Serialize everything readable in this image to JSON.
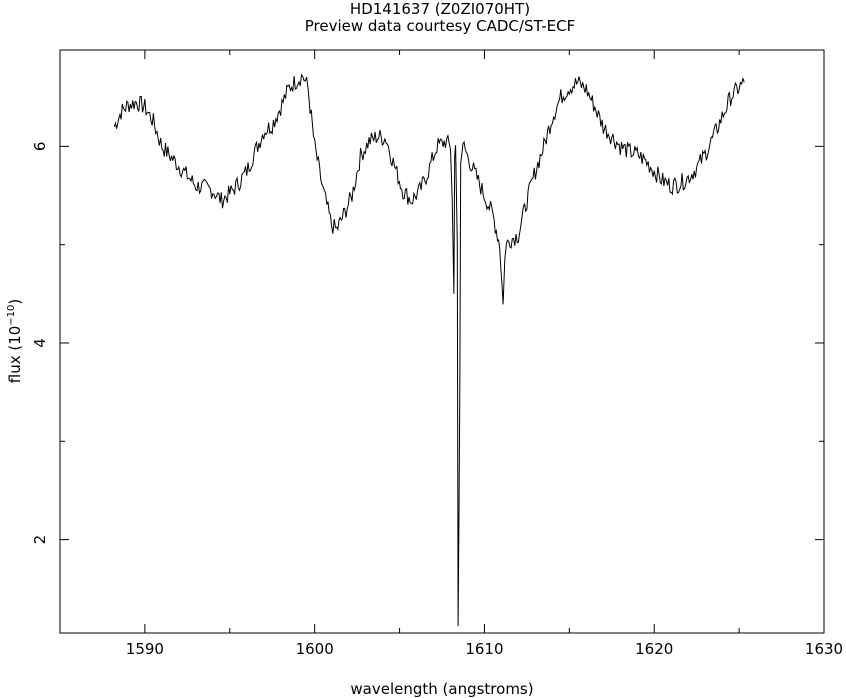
{
  "chart_data": {
    "type": "line",
    "title": "HD141637 (Z0ZI070HT)",
    "subtitle": "Preview data courtesy CADC/ST-ECF",
    "xlabel": "wavelength (angstroms)",
    "ylabel_base": "flux (10",
    "ylabel_exp": "−10",
    "ylabel_close": ")",
    "xlim": [
      1585,
      1630
    ],
    "ylim": [
      1.05,
      6.98
    ],
    "x_ticks": [
      "1590",
      "1600",
      "1610",
      "1620",
      "1630"
    ],
    "y_ticks": [
      "2",
      "4",
      "6"
    ],
    "grid": false,
    "line_color": "#000000",
    "series": [
      {
        "x": [
          1588.2,
          1588.6,
          1589.0,
          1589.5,
          1590.0,
          1590.5,
          1591.0,
          1591.5,
          1592.0,
          1592.5,
          1593.0,
          1593.5,
          1594.0,
          1594.5,
          1595.0,
          1595.5,
          1596.0,
          1596.5,
          1597.0,
          1597.5,
          1598.0,
          1598.5,
          1599.0,
          1599.3,
          1599.6,
          1600.0,
          1600.5,
          1601.0,
          1601.3,
          1601.7,
          1602.2,
          1602.7,
          1603.2,
          1603.7,
          1604.2,
          1604.7,
          1605.2,
          1605.7,
          1606.2,
          1606.7,
          1607.2,
          1607.7,
          1608.0,
          1608.1,
          1608.2,
          1608.25,
          1608.3,
          1608.4,
          1608.45,
          1608.5,
          1608.55,
          1608.6,
          1608.8,
          1609.0,
          1609.5,
          1610.0,
          1610.5,
          1610.9,
          1611.1,
          1611.2,
          1611.3,
          1611.5,
          1612.0,
          1612.5,
          1613.0,
          1613.5,
          1614.0,
          1614.5,
          1615.0,
          1615.5,
          1616.0,
          1616.5,
          1617.0,
          1617.5,
          1618.0,
          1618.5,
          1619.0,
          1619.5,
          1620.0,
          1620.5,
          1621.0,
          1621.5,
          1622.0,
          1622.5,
          1623.0,
          1623.5,
          1624.0,
          1624.5,
          1625.0,
          1625.3
        ],
        "y": [
          6.2,
          6.35,
          6.42,
          6.45,
          6.4,
          6.25,
          6.0,
          5.9,
          5.8,
          5.7,
          5.6,
          5.58,
          5.55,
          5.45,
          5.52,
          5.62,
          5.75,
          5.95,
          6.15,
          6.22,
          6.4,
          6.6,
          6.68,
          6.72,
          6.6,
          6.0,
          5.55,
          5.2,
          5.15,
          5.3,
          5.5,
          5.9,
          6.05,
          6.1,
          6.08,
          5.8,
          5.55,
          5.45,
          5.55,
          5.75,
          6.0,
          6.05,
          6.0,
          5.5,
          4.5,
          5.9,
          6.0,
          5.0,
          1.12,
          2.3,
          3.5,
          5.9,
          6.0,
          5.9,
          5.7,
          5.5,
          5.3,
          5.0,
          4.38,
          4.9,
          5.0,
          5.05,
          5.1,
          5.45,
          5.75,
          6.0,
          6.3,
          6.5,
          6.6,
          6.65,
          6.58,
          6.4,
          6.2,
          6.1,
          6.0,
          5.95,
          5.92,
          5.85,
          5.75,
          5.65,
          5.6,
          5.62,
          5.68,
          5.78,
          5.92,
          6.1,
          6.3,
          6.5,
          6.6,
          6.65
        ]
      }
    ]
  }
}
